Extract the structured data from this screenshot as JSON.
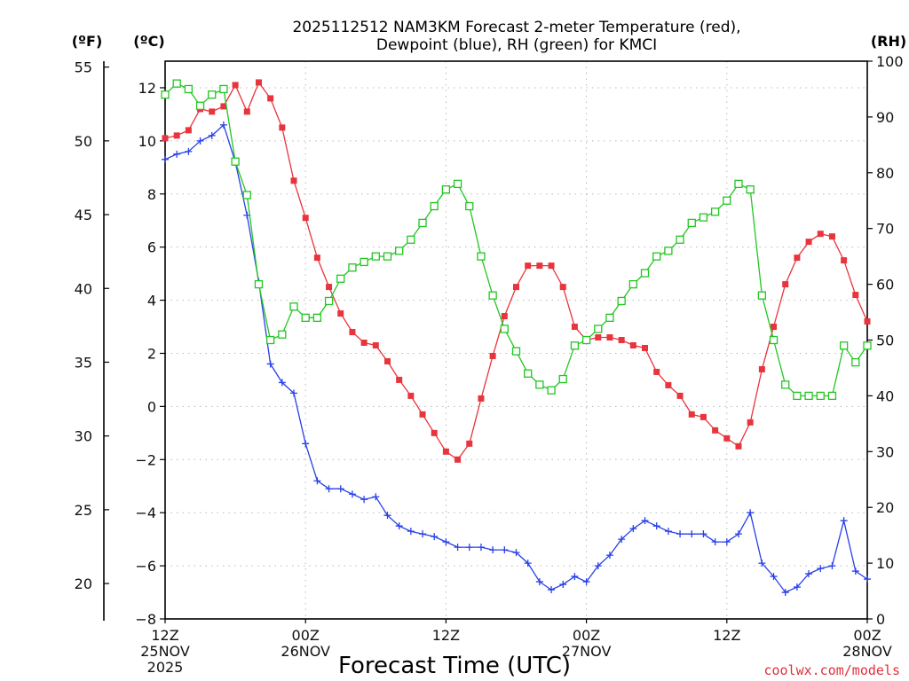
{
  "chart_data": {
    "type": "line",
    "title_line1": "2025112512 NAM3KM Forecast 2-meter Temperature (red),",
    "title_line2": "Dewpoint (blue), RH (green) for KMCI",
    "xlabel": "Forecast Time (UTC)",
    "credit": "coolwx.com/models",
    "units": {
      "fahrenheit": "(ºF)",
      "celsius": "(ºC)",
      "rh": "(RH)"
    },
    "x_range_hours": [
      0,
      60
    ],
    "celsius_range": [
      -8,
      13
    ],
    "rh_range": [
      0,
      100
    ],
    "celsius_ticks": [
      12,
      10,
      8,
      6,
      4,
      2,
      0,
      -2,
      -4,
      -6,
      -8
    ],
    "fahrenheit_ticks": [
      55,
      50,
      45,
      40,
      35,
      30,
      25,
      20
    ],
    "rh_ticks": [
      100,
      90,
      80,
      70,
      60,
      50,
      40,
      30,
      20,
      10,
      0
    ],
    "x_ticks": [
      {
        "hour": 0,
        "line1": "12Z",
        "line2": "25NOV",
        "line3": "2025"
      },
      {
        "hour": 12,
        "line1": "00Z",
        "line2": "26NOV",
        "line3": ""
      },
      {
        "hour": 24,
        "line1": "12Z",
        "line2": "",
        "line3": ""
      },
      {
        "hour": 36,
        "line1": "00Z",
        "line2": "27NOV",
        "line3": ""
      },
      {
        "hour": 48,
        "line1": "12Z",
        "line2": "",
        "line3": ""
      },
      {
        "hour": 60,
        "line1": "00Z",
        "line2": "28NOV",
        "line3": ""
      }
    ],
    "grid": "dotted",
    "series": [
      {
        "name": "2-meter Temperature",
        "unit": "C",
        "color": "#e8343c",
        "marker": "filled-square",
        "values": [
          10.1,
          10.2,
          10.4,
          11.2,
          11.1,
          11.3,
          12.1,
          11.1,
          12.2,
          11.6,
          10.5,
          8.5,
          7.1,
          5.6,
          4.5,
          3.5,
          2.8,
          2.4,
          2.3,
          1.7,
          1.0,
          0.4,
          -0.3,
          -1.0,
          -1.7,
          -2.0,
          -1.4,
          0.3,
          1.9,
          3.4,
          4.5,
          5.3,
          5.3,
          5.3,
          4.5,
          3.0,
          2.5,
          2.6,
          2.6,
          2.5,
          2.3,
          2.2,
          1.3,
          0.8,
          0.4,
          -0.3,
          -0.4,
          -0.9,
          -1.2,
          -1.5,
          -0.6,
          1.4,
          3.0,
          4.6,
          5.6,
          6.2,
          6.5,
          6.4,
          5.5,
          4.2,
          3.2
        ]
      },
      {
        "name": "Dewpoint",
        "unit": "C",
        "color": "#2840e8",
        "marker": "plus",
        "values": [
          9.3,
          9.5,
          9.6,
          10.0,
          10.2,
          10.6,
          9.2,
          7.2,
          4.7,
          1.6,
          0.9,
          0.5,
          -1.4,
          -2.8,
          -3.1,
          -3.1,
          -3.3,
          -3.5,
          -3.4,
          -4.1,
          -4.5,
          -4.7,
          -4.8,
          -4.9,
          -5.1,
          -5.3,
          -5.3,
          -5.3,
          -5.4,
          -5.4,
          -5.5,
          -5.9,
          -6.6,
          -6.9,
          -6.7,
          -6.4,
          -6.6,
          -6.0,
          -5.6,
          -5.0,
          -4.6,
          -4.3,
          -4.5,
          -4.7,
          -4.8,
          -4.8,
          -4.8,
          -5.1,
          -5.1,
          -4.8,
          -4.0,
          -5.9,
          -6.4,
          -7.0,
          -6.8,
          -6.3,
          -6.1,
          -6.0,
          -4.3,
          -6.2,
          -6.5
        ]
      },
      {
        "name": "RH",
        "unit": "%",
        "color": "#22c622",
        "marker": "open-square",
        "values": [
          94,
          96,
          95,
          92,
          94,
          95,
          82,
          76,
          60,
          50,
          51,
          56,
          54,
          54,
          57,
          61,
          63,
          64,
          65,
          65,
          66,
          68,
          71,
          74,
          77,
          78,
          74,
          65,
          58,
          52,
          48,
          44,
          42,
          41,
          43,
          49,
          50,
          52,
          54,
          57,
          60,
          62,
          65,
          66,
          68,
          71,
          72,
          73,
          75,
          78,
          77,
          58,
          50,
          42,
          40,
          40,
          40,
          40,
          49,
          46,
          49
        ]
      }
    ]
  }
}
